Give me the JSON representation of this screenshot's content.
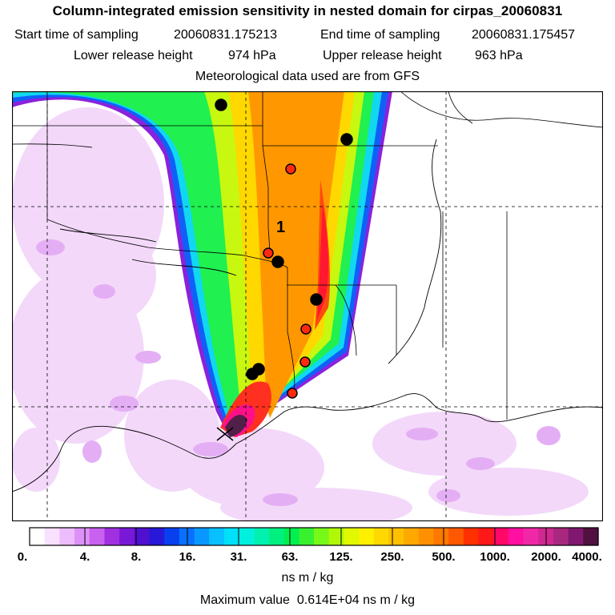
{
  "header": {
    "title": "Column-integrated emission sensitivity in nested domain for cirpas_20060831",
    "start_label": "Start time of sampling",
    "start_value": "20060831.175213",
    "end_label": "End time of sampling",
    "end_value": "20060831.175457",
    "lower_label": "Lower release height",
    "lower_value": "974 hPa",
    "upper_label": "Upper release height",
    "upper_value": "963 hPa",
    "met_line": "Meteorological data used are from GFS"
  },
  "map": {
    "plume_label": "1",
    "markers": [
      {
        "color": "black"
      },
      {
        "color": "black"
      },
      {
        "color": "red"
      },
      {
        "color": "red"
      },
      {
        "color": "black"
      },
      {
        "color": "black"
      },
      {
        "color": "red"
      },
      {
        "color": "red"
      },
      {
        "color": "black"
      },
      {
        "color": "black"
      },
      {
        "color": "red"
      }
    ]
  },
  "colorbar": {
    "tick_labels": [
      "0.",
      "4.",
      "8.",
      "16.",
      "31.",
      "63.",
      "125.",
      "250.",
      "500.",
      "1000.",
      "2000.",
      "4000."
    ],
    "colors": [
      "#ffffff",
      "#f8e0ff",
      "#ecbcfc",
      "#dc90f8",
      "#c860f0",
      "#a030e0",
      "#7a18d8",
      "#5010d0",
      "#2818d8",
      "#0840f0",
      "#0870ff",
      "#0898ff",
      "#08c0ff",
      "#00e0f8",
      "#00f0e0",
      "#00f0b0",
      "#00f080",
      "#00f050",
      "#38f030",
      "#78f818",
      "#b0f808",
      "#e0f800",
      "#fff000",
      "#ffd800",
      "#ffc000",
      "#ffa800",
      "#ff9000",
      "#ff7800",
      "#ff5800",
      "#ff3000",
      "#ff1818",
      "#ff0868",
      "#ff10a0",
      "#f028a8",
      "#d02890",
      "#a82880",
      "#801870",
      "#501040"
    ],
    "units": "ns m / kg"
  },
  "footer": {
    "max_label": "Maximum value",
    "max_value": "0.614E+04",
    "max_units": "ns m / kg"
  }
}
